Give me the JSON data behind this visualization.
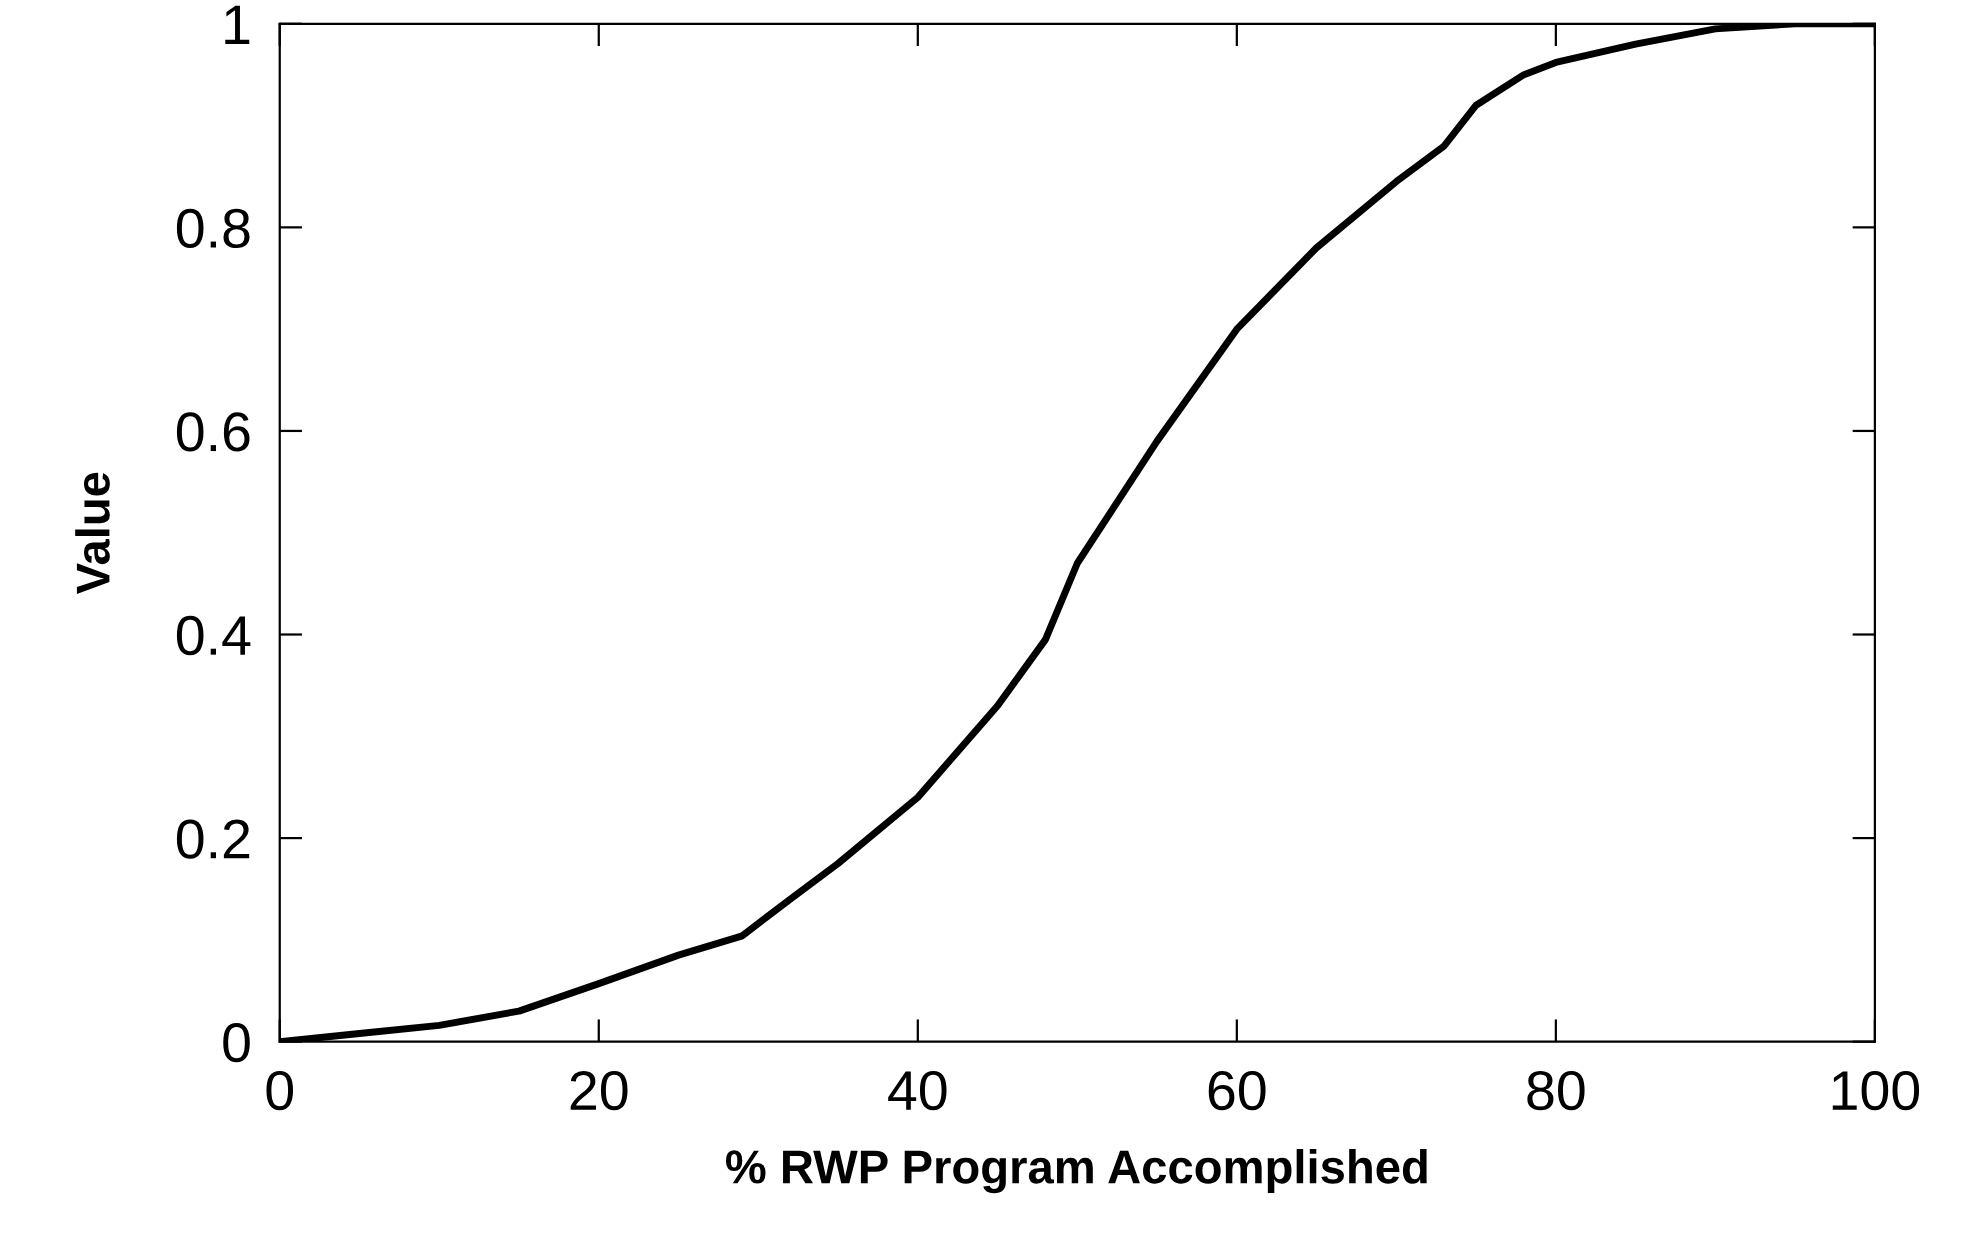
{
  "chart_data": {
    "type": "line",
    "xlabel": "% RWP Program Accomplished",
    "ylabel": "Value",
    "x": [
      0,
      5,
      10,
      15,
      20,
      25,
      29,
      32,
      35,
      40,
      45,
      48,
      50,
      55,
      60,
      65,
      70,
      73,
      75,
      78,
      80,
      85,
      90,
      95,
      100
    ],
    "series": [
      {
        "color": "#000000",
        "values": [
          0,
          0.008,
          0.016,
          0.03,
          0.057,
          0.085,
          0.104,
          0.14,
          0.175,
          0.24,
          0.33,
          0.395,
          0.47,
          0.59,
          0.7,
          0.78,
          0.845,
          0.88,
          0.92,
          0.95,
          0.962,
          0.98,
          0.995,
          1.0,
          1.0
        ]
      }
    ],
    "xlim": [
      0,
      100
    ],
    "ylim": [
      0,
      1
    ],
    "xticks": [
      0,
      20,
      40,
      60,
      80,
      100
    ],
    "yticks": [
      0,
      0.2,
      0.4,
      0.6,
      0.8,
      1
    ],
    "grid": false,
    "legend": false,
    "marker": "none",
    "line_style": "solid"
  }
}
